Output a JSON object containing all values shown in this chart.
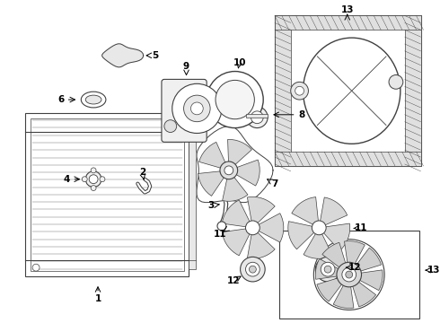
{
  "background_color": "#ffffff",
  "line_color": "#404040",
  "text_color": "#000000",
  "fig_width": 4.9,
  "fig_height": 3.6,
  "dpi": 100
}
